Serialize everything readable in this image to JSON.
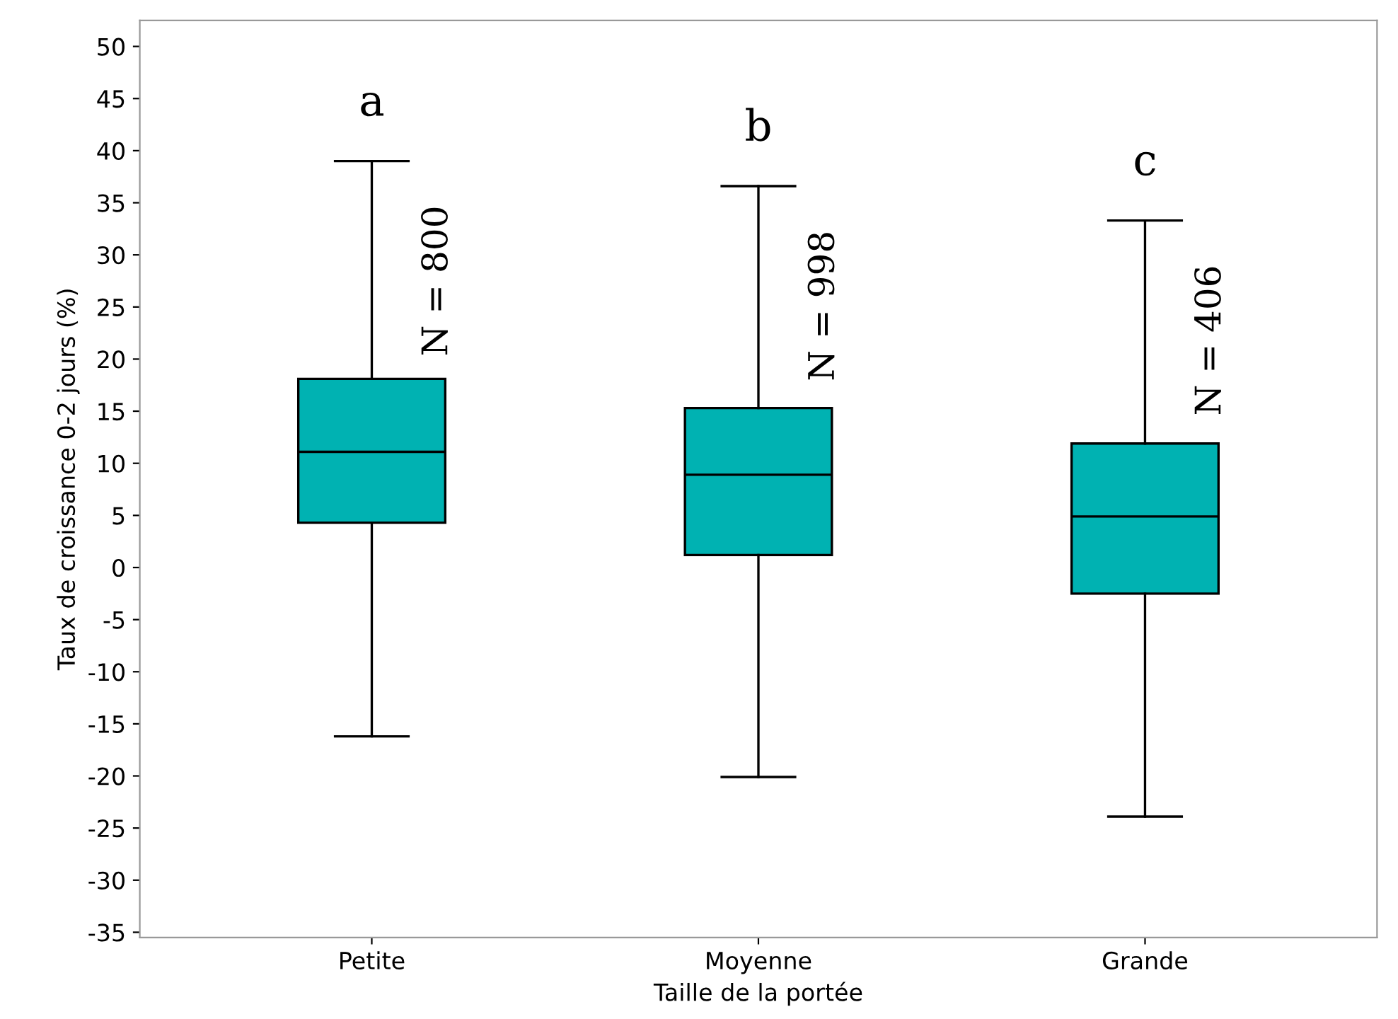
{
  "chart_data": {
    "type": "box",
    "xlabel": "Taille de la portée",
    "ylabel": "Taux de croissance 0-2 jours (%)",
    "categories": [
      "Petite",
      "Moyenne",
      "Grande"
    ],
    "boxes": [
      {
        "low": -16.2,
        "q1": 4.3,
        "median": 11.1,
        "q3": 18.1,
        "high": 39.0
      },
      {
        "low": -20.1,
        "q1": 1.2,
        "median": 8.9,
        "q3": 15.3,
        "high": 36.6
      },
      {
        "low": -23.9,
        "q1": -2.5,
        "median": 4.9,
        "q3": 11.9,
        "high": 33.3
      }
    ],
    "color": "#00b2b2",
    "ylim": [
      -35.5,
      52.5
    ],
    "yticks": [
      -35,
      -30,
      -25,
      -20,
      -15,
      -10,
      -5,
      0,
      5,
      10,
      15,
      20,
      25,
      30,
      35,
      40,
      45,
      50
    ],
    "grid": false,
    "legend": false,
    "annotations": [
      "a",
      "N = 800",
      "b",
      "N = 998",
      "c",
      "N = 406"
    ]
  }
}
